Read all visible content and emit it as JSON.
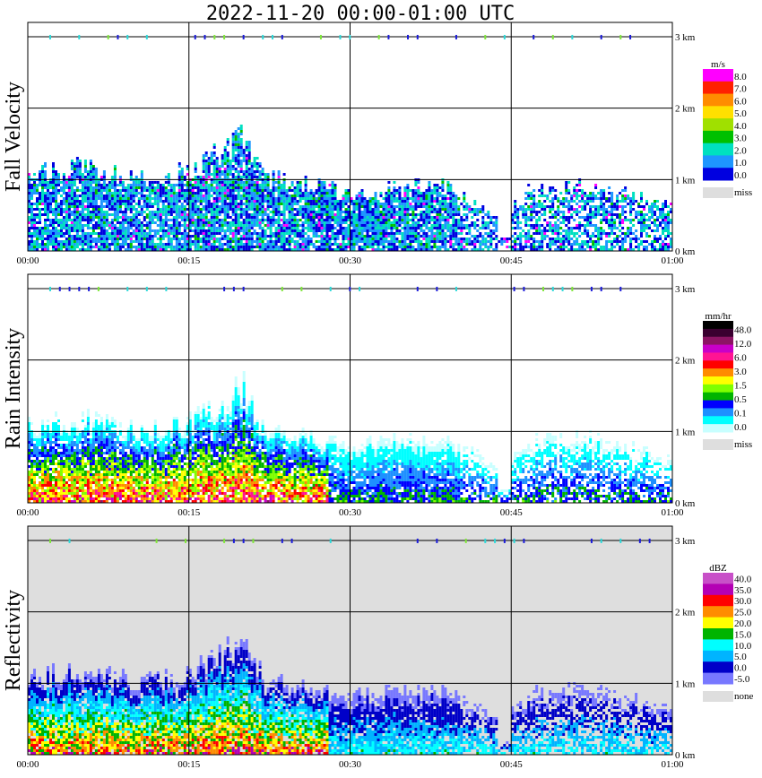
{
  "title": "2022-11-20   00:00-01:00 UTC",
  "colors": {
    "missing_bg": "#dedede",
    "grid": "#000000",
    "melting_layer_marks": [
      "#2bd9d9",
      "#7fe63a",
      "#1a1ad9"
    ]
  },
  "chart_data": [
    {
      "type": "heatmap",
      "panel": "fall_velocity",
      "ylabel": "Fall Velocity",
      "x_ticks": [
        "00:00",
        "00:15",
        "00:30",
        "00:45",
        "01:00"
      ],
      "y_ticks": [
        "0 km",
        "1 km",
        "2 km",
        "3 km"
      ],
      "xlim": [
        "00:00",
        "01:00"
      ],
      "ylim": [
        0,
        3.2
      ],
      "grid": true,
      "no_data_background": "#ffffff",
      "legend": {
        "unit": "m/s",
        "labels": [
          "8.0",
          "7.0",
          "6.0",
          "5.0",
          "4.0",
          "3.0",
          "2.0",
          "1.0",
          "0.0"
        ],
        "colors": [
          "#ff00ff",
          "#ff2000",
          "#ff8c00",
          "#ffe000",
          "#a0e000",
          "#00c000",
          "#00e0c0",
          "#1e96ff",
          "#0000e0"
        ],
        "missing_label": "miss",
        "missing_color": "#dedede"
      },
      "echo_top_km": [
        {
          "time": "00:00",
          "top": 1.05
        },
        {
          "time": "00:05",
          "top": 1.15
        },
        {
          "time": "00:10",
          "top": 1.0
        },
        {
          "time": "00:15",
          "top": 1.1
        },
        {
          "time": "00:20",
          "top": 1.6
        },
        {
          "time": "00:22",
          "top": 1.0
        },
        {
          "time": "00:30",
          "top": 0.8
        },
        {
          "time": "00:38",
          "top": 0.9
        },
        {
          "time": "00:44",
          "top": 0.5
        },
        {
          "time": "00:47",
          "top": 0.85
        },
        {
          "time": "00:52",
          "top": 0.9
        },
        {
          "time": "01:00",
          "top": 0.6
        }
      ]
    },
    {
      "type": "heatmap",
      "panel": "rain_intensity",
      "ylabel": "Rain Intensity",
      "x_ticks": [
        "00:00",
        "00:15",
        "00:30",
        "00:45",
        "01:00"
      ],
      "y_ticks": [
        "0 km",
        "1 km",
        "2 km",
        "3 km"
      ],
      "xlim": [
        "00:00",
        "01:00"
      ],
      "ylim": [
        0,
        3.2
      ],
      "grid": true,
      "no_data_background": "#ffffff",
      "legend": {
        "unit": "mm/hr",
        "labels": [
          "48.0",
          "12.0",
          "6.0",
          "3.0",
          "1.5",
          "0.5",
          "0.1",
          "0.0"
        ],
        "colors": [
          "#000000",
          "#3a0030",
          "#8c1464",
          "#c800c8",
          "#ff1493",
          "#ff0000",
          "#ff8c00",
          "#ffff00",
          "#7fff00",
          "#00b400",
          "#0000ff",
          "#1e90ff",
          "#00ffff",
          "#c8ffff"
        ],
        "missing_label": "miss",
        "missing_color": "#dedede"
      }
    },
    {
      "type": "heatmap",
      "panel": "reflectivity",
      "ylabel": "Reflectivity",
      "x_ticks": [
        "00:00",
        "00:15",
        "00:30",
        "00:45",
        "01:00"
      ],
      "y_ticks": [
        "0 km",
        "1 km",
        "2 km",
        "3 km"
      ],
      "xlim": [
        "00:00",
        "01:00"
      ],
      "ylim": [
        0,
        3.2
      ],
      "grid": true,
      "no_data_background": "#dedede",
      "legend": {
        "unit": "dBZ",
        "labels": [
          "40.0",
          "35.0",
          "30.0",
          "25.0",
          "20.0",
          "15.0",
          "10.0",
          "5.0",
          "0.0",
          "-5.0"
        ],
        "colors": [
          "#c850c8",
          "#b400b4",
          "#ff0000",
          "#ff8c00",
          "#ffff00",
          "#00b400",
          "#00ffff",
          "#00b4ff",
          "#0000c8",
          "#7878ff"
        ],
        "missing_label": "none",
        "missing_color": "#dedede"
      }
    }
  ]
}
